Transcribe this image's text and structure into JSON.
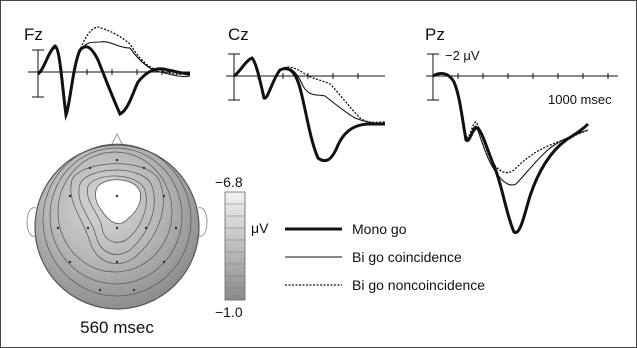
{
  "panels": [
    {
      "electrode": "Fz"
    },
    {
      "electrode": "Cz"
    },
    {
      "electrode": "Pz"
    }
  ],
  "scale": {
    "amplitude_label": "−2 μV",
    "time_label": "1000 msec"
  },
  "legend": [
    {
      "label": "Mono go",
      "style": "thick"
    },
    {
      "label": "Bi go coincidence",
      "style": "thin"
    },
    {
      "label": "Bi go noncoincidence",
      "style": "dotted"
    }
  ],
  "topomap": {
    "time_label": "560 msec"
  },
  "colorbar": {
    "max_label": "−6.8",
    "unit_label": "μV",
    "min_label": "−1.0"
  },
  "colors": {
    "line": "#111111",
    "head_fill": "#8c8c8c",
    "focus_fill": "#ffffff"
  }
}
